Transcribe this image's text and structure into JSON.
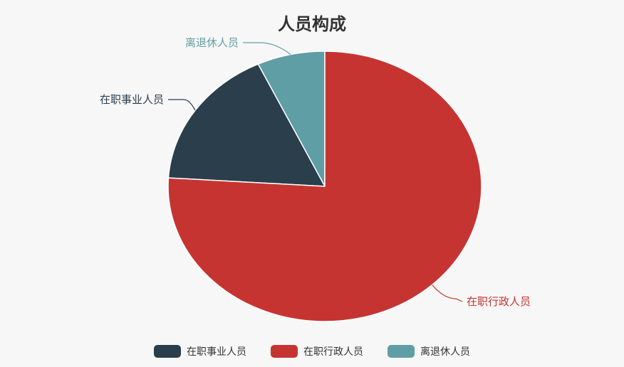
{
  "chart_data": {
    "type": "pie",
    "title": "人员构成",
    "slices": [
      {
        "name": "在职事业人员",
        "value": 17,
        "color": "#2a3e4c"
      },
      {
        "name": "在职行政人员",
        "value": 76,
        "color": "#c63431"
      },
      {
        "name": "离退休人员",
        "value": 7,
        "color": "#5f9ea4"
      }
    ]
  }
}
